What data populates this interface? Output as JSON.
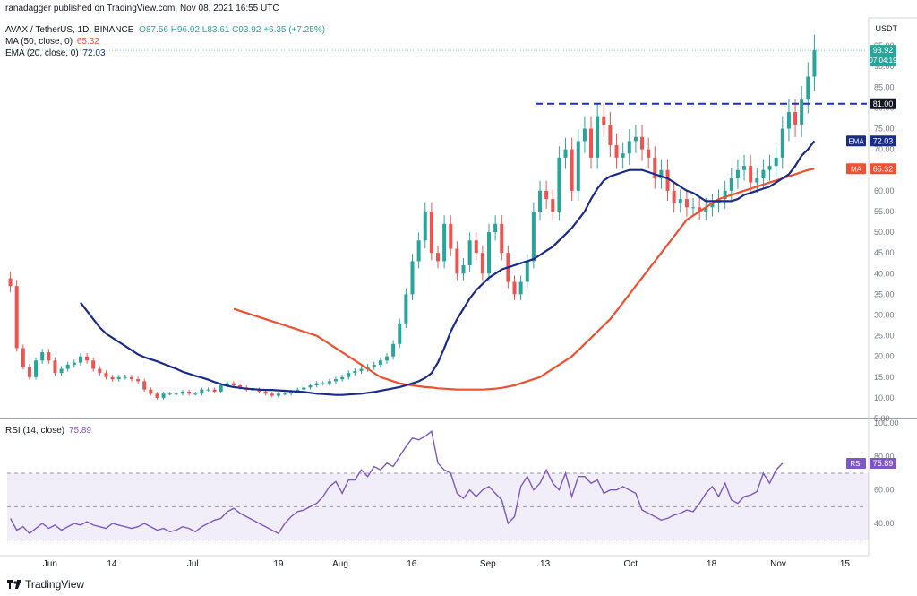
{
  "header": {
    "published": "ranadagger published on TradingView.com, Nov 08, 2021 16:55 UTC",
    "symbol": "AVAX / TetherUS, 1D, BINANCE",
    "ohlc": "O87.56 H96.92 L83.61 C93.92 +6.35 (+7.25%)",
    "ma_label": "MA (50, close, 0)",
    "ma_value": "65.32",
    "ema_label": "EMA (20, close, 0)",
    "ema_value": "72.03",
    "rsi_label": "RSI (14, close)",
    "rsi_value": "75.89"
  },
  "footer": {
    "brand": "TradingView"
  },
  "colors": {
    "up": "#26a69a",
    "down": "#ef5350",
    "ema": "#1a2b8c",
    "ma": "#ef5030",
    "rsi": "#7e57c2",
    "level": "#1a2bd8"
  },
  "chart_data": [
    {
      "type": "candlestick",
      "title": "AVAX / TetherUS, 1D, BINANCE",
      "currency": "USDT",
      "ylim": [
        5,
        100
      ],
      "y_ticks": [
        "5.00",
        "10.00",
        "15.00",
        "20.00",
        "25.00",
        "30.00",
        "35.00",
        "40.00",
        "45.00",
        "50.00",
        "55.00",
        "60.00",
        "65.00",
        "70.00",
        "75.00",
        "80.00",
        "85.00",
        "90.00",
        "95.00"
      ],
      "x_tick_labels": [
        "Jun",
        "14",
        "Jul",
        "19",
        "Aug",
        "16",
        "Sep",
        "13",
        "Oct",
        "18",
        "Nov",
        "15"
      ],
      "x_tick_dates": [
        "2021-06-01",
        "2021-06-14",
        "2021-07-01",
        "2021-07-19",
        "2021-08-01",
        "2021-08-16",
        "2021-09-01",
        "2021-09-13",
        "2021-10-01",
        "2021-10-18",
        "2021-11-01",
        "2021-11-15"
      ],
      "x_range": [
        "2021-05-23",
        "2021-11-20"
      ],
      "last_price": "93.92",
      "countdown": "07:04:19",
      "resistance_level": {
        "value": 81,
        "label": "81.00"
      },
      "ema_tag": {
        "name": "EMA",
        "value": "72.03"
      },
      "ma_tag": {
        "name": "MA",
        "value": "65.32"
      },
      "closes": [
        37,
        22,
        17.5,
        15,
        19,
        21,
        19,
        16,
        17,
        18,
        18.5,
        20,
        19,
        17,
        16,
        15,
        14.5,
        15,
        15,
        14.5,
        14,
        12,
        11,
        10,
        11,
        11,
        11,
        11.5,
        11,
        11,
        12,
        12,
        11.5,
        13,
        13.5,
        13,
        12.5,
        12,
        12,
        11.5,
        11,
        10.5,
        11,
        11,
        11.5,
        12,
        12.5,
        13,
        13.5,
        13.5,
        14,
        14.5,
        15,
        16,
        16.5,
        17,
        17.5,
        18,
        19,
        20,
        23,
        28,
        35,
        43,
        48,
        55,
        45,
        43,
        52,
        46,
        40,
        42,
        48,
        45,
        40,
        50,
        52,
        45,
        38,
        35,
        38,
        43,
        55,
        60,
        58,
        55,
        68,
        70,
        60,
        72,
        75,
        68,
        78,
        76,
        71,
        68,
        69,
        72,
        73,
        70,
        68,
        63,
        65,
        60,
        57,
        58,
        56,
        56,
        55,
        56,
        57,
        58,
        60,
        63,
        65,
        66,
        62,
        63,
        65,
        66,
        68,
        75,
        79,
        76,
        82,
        87.56,
        93.92
      ],
      "ema": [
        33,
        31,
        29,
        27,
        25.5,
        24.5,
        23.5,
        22.5,
        21.5,
        20.5,
        19.8,
        19.3,
        18.8,
        18.2,
        17.6,
        17,
        16.3,
        15.8,
        15.3,
        14.9,
        14.4,
        13.8,
        13.3,
        12.9,
        12.6,
        12.4,
        12.2,
        12.1,
        12,
        11.9,
        11.9,
        11.8,
        11.7,
        11.6,
        11.5,
        11.4,
        11.2,
        11,
        10.9,
        10.8,
        10.7,
        10.7,
        10.8,
        10.9,
        11,
        11.2,
        11.4,
        11.7,
        12,
        12.3,
        12.6,
        13,
        13.5,
        14,
        14.8,
        16,
        18.5,
        22,
        26,
        29,
        31.5,
        34,
        36,
        37.5,
        39,
        40,
        41,
        41.5,
        42,
        42.5,
        43,
        43.5,
        44.5,
        45.5,
        46.5,
        48,
        49.5,
        51,
        53,
        55,
        58,
        60.5,
        62.5,
        63.5,
        64,
        64.5,
        65,
        65,
        65,
        64.5,
        64,
        63.5,
        63,
        62,
        61,
        60,
        59.5,
        58.5,
        57.5,
        57.5,
        57.5,
        57.5,
        57.5,
        58,
        59,
        59.5,
        60,
        60.5,
        61,
        62,
        63,
        64,
        66,
        68.5,
        70,
        72.03
      ],
      "ma": [
        31.5,
        31,
        30.5,
        30,
        29.5,
        29,
        28.5,
        28,
        27.5,
        27,
        26.5,
        26,
        25.5,
        25,
        24,
        23,
        22,
        21,
        20,
        19,
        18,
        17,
        16,
        15,
        14.5,
        14,
        13.5,
        13.2,
        13,
        12.8,
        12.6,
        12.5,
        12.3,
        12.2,
        12.1,
        12,
        12,
        12,
        12,
        12,
        12.1,
        12.2,
        12.4,
        12.7,
        13,
        13.5,
        14,
        14.5,
        15,
        16,
        17,
        18,
        19,
        20,
        21.5,
        23,
        24.5,
        26,
        27.5,
        29,
        31,
        33,
        35,
        37,
        39,
        41,
        43,
        45,
        47,
        49,
        51,
        53,
        54,
        55,
        56,
        57,
        58,
        58.5,
        59,
        59.5,
        60,
        60.5,
        61,
        61.5,
        62,
        62.5,
        63,
        63.5,
        64,
        64.5,
        65,
        65.32
      ]
    },
    {
      "type": "line",
      "title": "RSI (14, close)",
      "ylim": [
        25,
        100
      ],
      "y_ticks": [
        "40.00",
        "60.00",
        "80.00",
        "100.00"
      ],
      "bands": [
        30,
        50,
        70
      ],
      "last_value": "75.89",
      "values": [
        43,
        36,
        38,
        34,
        37,
        40,
        37,
        39,
        36,
        38,
        40,
        39,
        41,
        39,
        38,
        37,
        40,
        39,
        38,
        37,
        38,
        40,
        38,
        36,
        37,
        35,
        36,
        38,
        37,
        35,
        38,
        40,
        42,
        43,
        47,
        49,
        46,
        44,
        42,
        40,
        38,
        36,
        34,
        40,
        44,
        47,
        48,
        50,
        52,
        56,
        62,
        65,
        58,
        66,
        66,
        72,
        68,
        74,
        72,
        76,
        74,
        80,
        86,
        91,
        90,
        92,
        95,
        76,
        72,
        70,
        58,
        55,
        60,
        56,
        60,
        62,
        58,
        54,
        40,
        44,
        62,
        68,
        60,
        64,
        72,
        64,
        60,
        70,
        56,
        68,
        68,
        64,
        66,
        58,
        60,
        60,
        62,
        60,
        58,
        48,
        46,
        44,
        42,
        43,
        45,
        46,
        48,
        47,
        52,
        58,
        62,
        56,
        64,
        54,
        52,
        56,
        57,
        59,
        70,
        64,
        72,
        75.89
      ]
    }
  ]
}
